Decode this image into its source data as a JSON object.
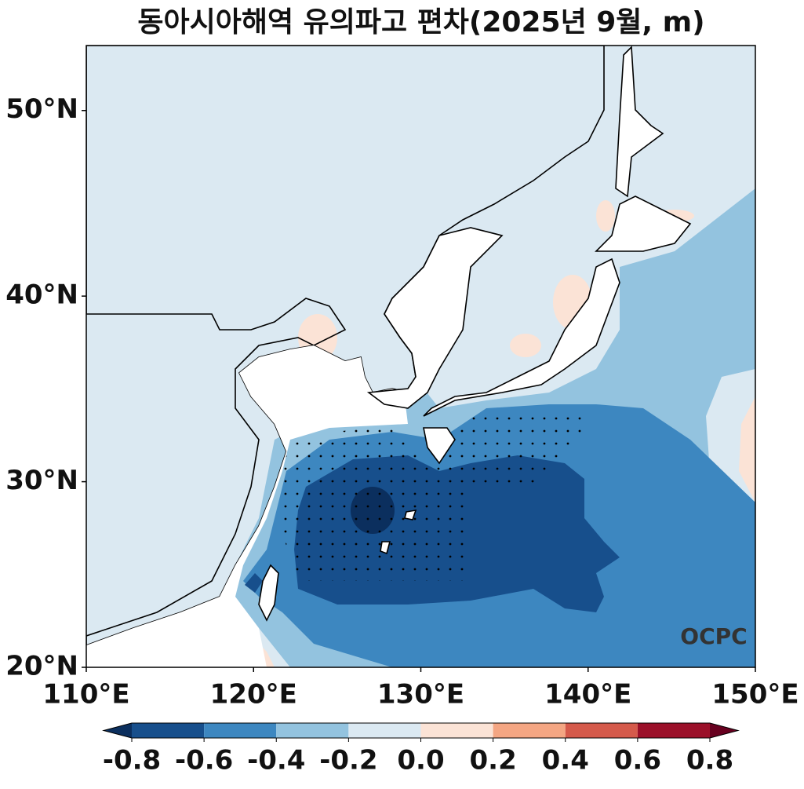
{
  "chart_data": {
    "type": "map",
    "title": "동아시아해역 유의파고 편차(2025년 9월, m)",
    "xlim": [
      110,
      150
    ],
    "ylim": [
      20,
      53.5
    ],
    "xticks": [
      {
        "value": 110,
        "label": "110°E"
      },
      {
        "value": 120,
        "label": "120°E"
      },
      {
        "value": 130,
        "label": "130°E"
      },
      {
        "value": 140,
        "label": "140°E"
      },
      {
        "value": 150,
        "label": "150°E"
      }
    ],
    "yticks": [
      {
        "value": 20,
        "label": "20°N"
      },
      {
        "value": 30,
        "label": "30°N"
      },
      {
        "value": 40,
        "label": "40°N"
      },
      {
        "value": 50,
        "label": "50°N"
      }
    ],
    "colorbar": {
      "ticks": [
        -0.8,
        -0.6,
        -0.4,
        -0.2,
        {
          "value": 0,
          "label": "0.0"
        },
        0.2,
        0.4,
        0.6,
        0.8
      ],
      "colors": [
        "#174f8c",
        "#3d87c0",
        "#93c3df",
        "#dbe9f2",
        "#fbe3d6",
        "#f4a683",
        "#d55a4b",
        "#9b1029"
      ],
      "extend_colors": [
        "#0b2f5e",
        "#67001f"
      ]
    },
    "logo": "OCPC"
  }
}
